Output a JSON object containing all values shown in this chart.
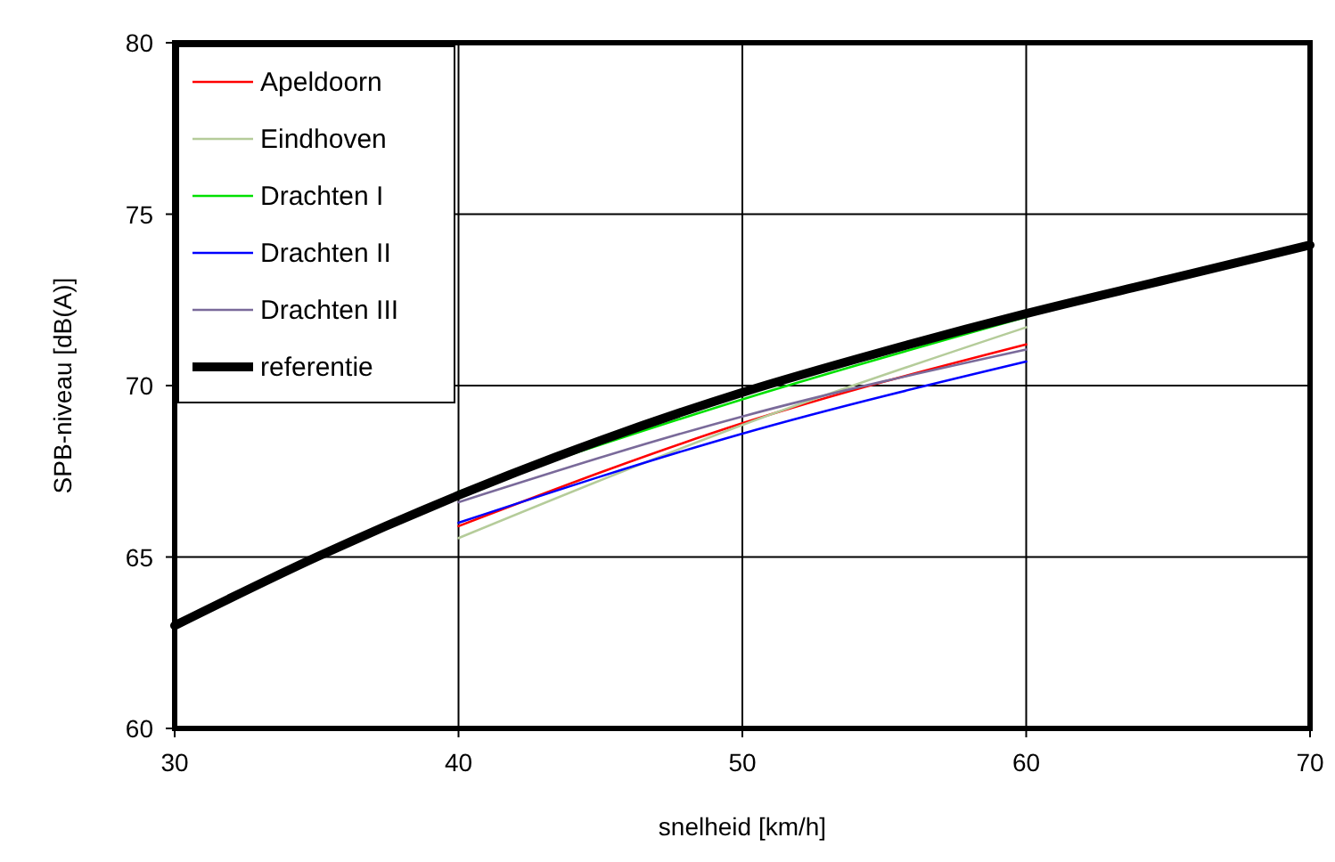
{
  "chart_data": {
    "type": "line",
    "xlabel": "snelheid [km/h]",
    "ylabel": "SPB-niveau [dB(A)]",
    "xlim": [
      30,
      70
    ],
    "xticks": [
      30,
      40,
      50,
      60,
      70
    ],
    "ylim": [
      60,
      80
    ],
    "yticks": [
      60,
      65,
      70,
      75,
      80
    ],
    "grid": true,
    "legend": "top left",
    "marker": "none",
    "line_style": "solid",
    "series": [
      {
        "name": "Apeldoorn",
        "color": "#ff0000",
        "x": [
          40,
          50,
          60
        ],
        "values": [
          65.9,
          68.9,
          71.2
        ]
      },
      {
        "name": "Eindhoven",
        "color": "#b5cc9a",
        "x": [
          40,
          50,
          60
        ],
        "values": [
          65.55,
          68.85,
          71.7
        ]
      },
      {
        "name": "Drachten I",
        "color": "#00e000",
        "x": [
          40,
          50,
          60
        ],
        "values": [
          66.9,
          69.6,
          72.0
        ]
      },
      {
        "name": "Drachten II",
        "color": "#0000ff",
        "x": [
          40,
          50,
          60
        ],
        "values": [
          66.0,
          68.6,
          70.7
        ]
      },
      {
        "name": "Drachten III",
        "color": "#7a6a9a",
        "x": [
          40,
          50,
          60
        ],
        "values": [
          66.6,
          69.1,
          71.05
        ]
      },
      {
        "name": "referentie",
        "color": "#000000",
        "x": [
          30,
          35,
          40,
          45,
          50,
          55,
          60,
          65,
          70
        ],
        "values": [
          63.0,
          65.0,
          66.8,
          68.4,
          69.8,
          71.0,
          72.1,
          73.1,
          74.1
        ]
      }
    ]
  }
}
